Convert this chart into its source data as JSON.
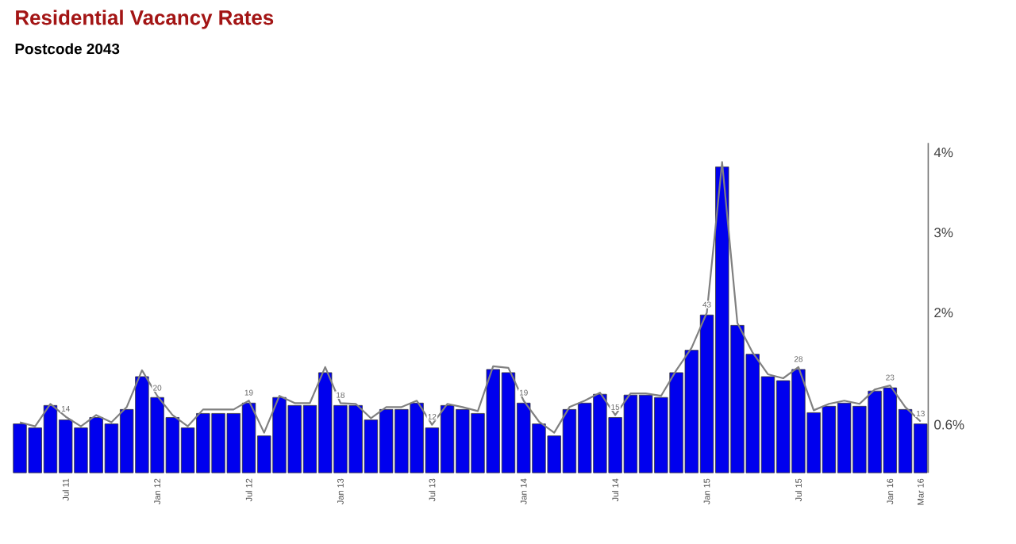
{
  "chart_data": {
    "type": "bar",
    "title": "Residential Vacancy Rates",
    "subtitle": "Postcode 2043",
    "categories": [
      null,
      null,
      null,
      "Jul 11",
      null,
      null,
      null,
      null,
      null,
      "Jan 12",
      null,
      null,
      null,
      null,
      null,
      "Jul 12",
      null,
      null,
      null,
      null,
      null,
      "Jan 13",
      null,
      null,
      null,
      null,
      null,
      "Jul 13",
      null,
      null,
      null,
      null,
      null,
      "Jan 14",
      null,
      null,
      null,
      null,
      null,
      "Jul 14",
      null,
      null,
      null,
      null,
      null,
      "Jan 15",
      null,
      null,
      null,
      null,
      null,
      "Jul 15",
      null,
      null,
      null,
      null,
      null,
      "Jan 16",
      null,
      "Mar 16"
    ],
    "series": [
      {
        "color": "#0000ee",
        "values": [
          0.61,
          0.56,
          0.84,
          0.66,
          0.56,
          0.69,
          0.61,
          0.79,
          1.2,
          0.94,
          0.69,
          0.56,
          0.74,
          0.74,
          0.74,
          0.87,
          0.46,
          0.94,
          0.84,
          0.84,
          1.25,
          0.84,
          0.84,
          0.66,
          0.79,
          0.79,
          0.87,
          0.56,
          0.84,
          0.79,
          0.74,
          1.29,
          1.25,
          0.87,
          0.61,
          0.46,
          0.79,
          0.87,
          0.98,
          0.69,
          0.97,
          0.97,
          0.94,
          1.25,
          1.53,
          1.97,
          3.82,
          1.84,
          1.48,
          1.2,
          1.15,
          1.29,
          0.75,
          0.83,
          0.87,
          0.83,
          1.02,
          1.06,
          0.79,
          0.61
        ]
      },
      {
        "type": "line",
        "color": "#808080",
        "values": [
          0.63,
          0.58,
          0.86,
          0.7,
          0.58,
          0.72,
          0.63,
          0.82,
          1.28,
          0.96,
          0.72,
          0.58,
          0.79,
          0.79,
          0.79,
          0.9,
          0.5,
          0.96,
          0.87,
          0.87,
          1.32,
          0.87,
          0.86,
          0.68,
          0.82,
          0.82,
          0.9,
          0.6,
          0.86,
          0.82,
          0.77,
          1.33,
          1.31,
          0.9,
          0.64,
          0.5,
          0.82,
          0.9,
          1.0,
          0.72,
          0.99,
          0.99,
          0.96,
          1.28,
          1.56,
          2.0,
          3.88,
          1.87,
          1.5,
          1.23,
          1.18,
          1.32,
          0.78,
          0.86,
          0.9,
          0.86,
          1.04,
          1.09,
          0.82,
          0.64
        ]
      }
    ],
    "annotations": [
      {
        "text": "14",
        "x": "Jul 11",
        "y": 0.7
      },
      {
        "text": "20",
        "x": "Jan 12",
        "y": 0.96
      },
      {
        "text": "19",
        "x": "Jul 12",
        "y": 0.9
      },
      {
        "text": "18",
        "x": "Jan 13",
        "y": 0.87
      },
      {
        "text": "12",
        "x": "Jul 13",
        "y": 0.6
      },
      {
        "text": "19",
        "x": "Jan 14",
        "y": 0.9
      },
      {
        "text": "15",
        "x": "Jul 14",
        "y": 0.72
      },
      {
        "text": "43",
        "x": "Jan 15",
        "y": 2.0
      },
      {
        "text": "28",
        "x": "Jul 15",
        "y": 1.32
      },
      {
        "text": "23",
        "x": "Jan 16",
        "y": 1.09
      },
      {
        "text": "13",
        "x": "Mar 16",
        "y": 0.64
      }
    ],
    "ylim": [
      0,
      4.12
    ],
    "yticks": [
      {
        "value": 0.6,
        "label": "0.6%"
      },
      {
        "value": 2,
        "label": "2%"
      },
      {
        "value": 3,
        "label": "3%"
      },
      {
        "value": 4,
        "label": "4%"
      }
    ]
  }
}
